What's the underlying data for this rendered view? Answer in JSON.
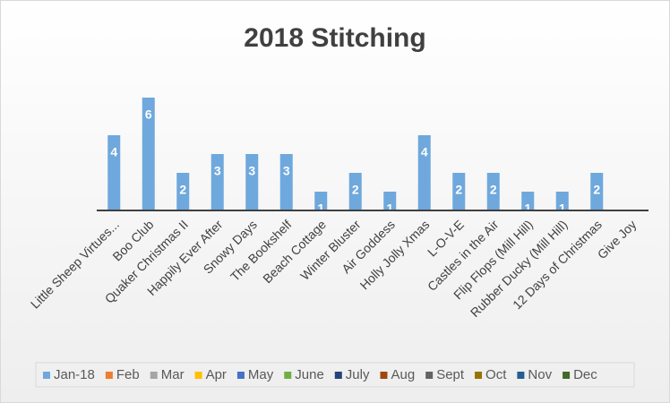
{
  "chart_data": {
    "type": "bar",
    "title": "2018 Stitching",
    "categories": [
      "Little Sheep Virtues...",
      "Boo Club",
      "Quaker Christmas II",
      "Happily Ever After",
      "Snowy Days",
      "The Bookshelf",
      "Beach Cottage",
      "Winter Bluster",
      "Air Goddess",
      "Holly Jolly Xmas",
      "L-O-V-E",
      "Castles in the Air",
      "Flip Flops (Mill Hill)",
      "Rubber Ducky (Mill Hill)",
      "12 Days of Christmas",
      "Give Joy"
    ],
    "series": [
      {
        "name": "Jan-18",
        "color": "#6fa8dc",
        "values": [
          4,
          6,
          2,
          3,
          3,
          3,
          1,
          2,
          1,
          4,
          2,
          2,
          1,
          1,
          2,
          null
        ]
      },
      {
        "name": "Feb",
        "color": "#ed7d31",
        "values": [
          null,
          null,
          null,
          null,
          null,
          null,
          null,
          null,
          null,
          null,
          null,
          null,
          null,
          null,
          null,
          null
        ]
      },
      {
        "name": "Mar",
        "color": "#a5a5a5",
        "values": [
          null,
          null,
          null,
          null,
          null,
          null,
          null,
          null,
          null,
          null,
          null,
          null,
          null,
          null,
          null,
          null
        ]
      },
      {
        "name": "Apr",
        "color": "#ffc000",
        "values": [
          null,
          null,
          null,
          null,
          null,
          null,
          null,
          null,
          null,
          null,
          null,
          null,
          null,
          null,
          null,
          null
        ]
      },
      {
        "name": "May",
        "color": "#4472c4",
        "values": [
          null,
          null,
          null,
          null,
          null,
          null,
          null,
          null,
          null,
          null,
          null,
          null,
          null,
          null,
          null,
          null
        ]
      },
      {
        "name": "June",
        "color": "#70ad47",
        "values": [
          null,
          null,
          null,
          null,
          null,
          null,
          null,
          null,
          null,
          null,
          null,
          null,
          null,
          null,
          null,
          null
        ]
      },
      {
        "name": "July",
        "color": "#264478",
        "values": [
          null,
          null,
          null,
          null,
          null,
          null,
          null,
          null,
          null,
          null,
          null,
          null,
          null,
          null,
          null,
          null
        ]
      },
      {
        "name": "Aug",
        "color": "#9e480e",
        "values": [
          null,
          null,
          null,
          null,
          null,
          null,
          null,
          null,
          null,
          null,
          null,
          null,
          null,
          null,
          null,
          null
        ]
      },
      {
        "name": "Sept",
        "color": "#636363",
        "values": [
          null,
          null,
          null,
          null,
          null,
          null,
          null,
          null,
          null,
          null,
          null,
          null,
          null,
          null,
          null,
          null
        ]
      },
      {
        "name": "Oct",
        "color": "#997300",
        "values": [
          null,
          null,
          null,
          null,
          null,
          null,
          null,
          null,
          null,
          null,
          null,
          null,
          null,
          null,
          null,
          null
        ]
      },
      {
        "name": "Nov",
        "color": "#255e91",
        "values": [
          null,
          null,
          null,
          null,
          null,
          null,
          null,
          null,
          null,
          null,
          null,
          null,
          null,
          null,
          null,
          null
        ]
      },
      {
        "name": "Dec",
        "color": "#43682b",
        "values": [
          null,
          null,
          null,
          null,
          null,
          null,
          null,
          null,
          null,
          null,
          null,
          null,
          null,
          null,
          null,
          null
        ]
      }
    ],
    "ylim": [
      0,
      7
    ],
    "legend": "bottom"
  }
}
